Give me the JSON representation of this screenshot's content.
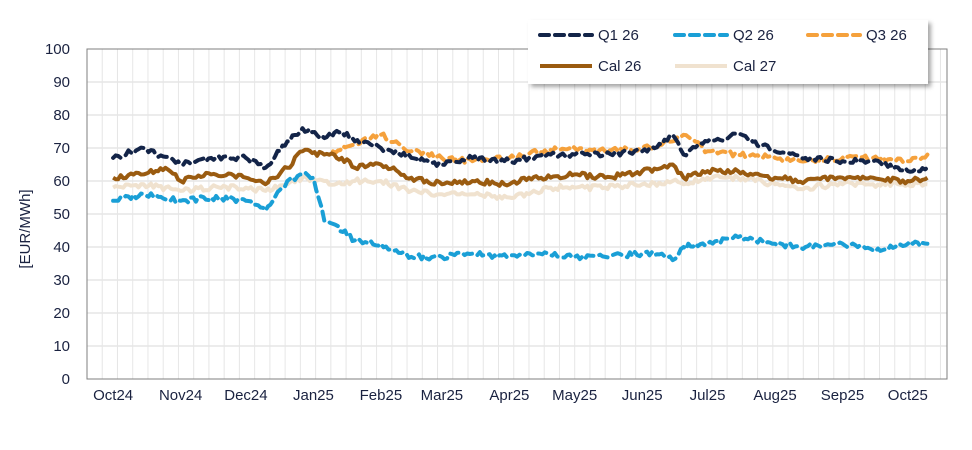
{
  "chart_data": {
    "type": "line",
    "ylabel": "[EUR/MWh]",
    "ylim": [
      0,
      100
    ],
    "yticks": [
      "0",
      "10",
      "20",
      "30",
      "40",
      "50",
      "60",
      "70",
      "80",
      "90",
      "100"
    ],
    "xticks": [
      "Oct24",
      "Nov24",
      "Dec24",
      "Jan25",
      "Feb25",
      "Mar25",
      "Apr25",
      "May25",
      "Jun25",
      "Jul25",
      "Aug25",
      "Sep25",
      "Oct25"
    ],
    "grid": true,
    "legend_position": "top-right",
    "series": [
      {
        "name": "Q1 26",
        "color": "#132448",
        "style": "dashed",
        "x": [
          "2024-10-01",
          "2024-10-15",
          "2024-11-01",
          "2024-11-15",
          "2024-12-01",
          "2024-12-10",
          "2024-12-20",
          "2024-12-27",
          "2025-01-06",
          "2025-01-14",
          "2025-01-20",
          "2025-02-01",
          "2025-02-15",
          "2025-03-01",
          "2025-03-15",
          "2025-04-01",
          "2025-04-10",
          "2025-04-20",
          "2025-05-01",
          "2025-05-15",
          "2025-06-01",
          "2025-06-10",
          "2025-06-15",
          "2025-06-20",
          "2025-07-01",
          "2025-07-15",
          "2025-08-01",
          "2025-08-15",
          "2025-09-01",
          "2025-09-15",
          "2025-10-01",
          "2025-10-10"
        ],
        "y": [
          67,
          70,
          65,
          67,
          67,
          64,
          72,
          76,
          73,
          75,
          72,
          70,
          67,
          65,
          67,
          66,
          67,
          68,
          68,
          68,
          69,
          71,
          74,
          68,
          72,
          74,
          69,
          67,
          66,
          66,
          63,
          64
        ]
      },
      {
        "name": "Q2 26",
        "color": "#1a9fd6",
        "style": "dashed",
        "x": [
          "2024-10-01",
          "2024-10-15",
          "2024-11-01",
          "2024-11-15",
          "2024-12-01",
          "2024-12-10",
          "2024-12-20",
          "2024-12-27",
          "2025-01-01",
          "2025-01-06",
          "2025-01-10",
          "2025-01-20",
          "2025-02-01",
          "2025-02-15",
          "2025-03-01",
          "2025-03-15",
          "2025-04-01",
          "2025-04-15",
          "2025-05-01",
          "2025-05-15",
          "2025-06-01",
          "2025-06-10",
          "2025-06-15",
          "2025-06-20",
          "2025-07-01",
          "2025-07-15",
          "2025-08-01",
          "2025-08-15",
          "2025-09-01",
          "2025-09-15",
          "2025-10-01",
          "2025-10-10"
        ],
        "y": [
          54,
          56,
          54,
          55,
          54,
          51,
          60,
          62,
          61,
          48,
          47,
          42,
          41,
          37,
          37,
          38,
          37,
          38,
          37,
          37,
          38,
          38,
          36,
          40,
          41,
          43,
          41,
          40,
          41,
          39,
          41,
          41
        ]
      },
      {
        "name": "Q3 26",
        "color": "#f5a13c",
        "style": "dashed",
        "x": [
          "2025-01-10",
          "2025-01-20",
          "2025-02-01",
          "2025-02-15",
          "2025-03-01",
          "2025-03-15",
          "2025-04-01",
          "2025-04-15",
          "2025-05-01",
          "2025-05-15",
          "2025-06-01",
          "2025-06-10",
          "2025-06-15",
          "2025-06-20",
          "2025-07-01",
          "2025-07-15",
          "2025-08-01",
          "2025-08-15",
          "2025-09-01",
          "2025-09-15",
          "2025-10-01",
          "2025-10-10"
        ],
        "y": [
          69,
          71,
          74,
          69,
          67,
          66,
          67,
          69,
          70,
          69,
          70,
          71,
          72,
          74,
          69,
          68,
          67,
          66,
          67,
          67,
          66,
          68
        ]
      },
      {
        "name": "Cal 26",
        "color": "#9a5b10",
        "style": "solid",
        "x": [
          "2024-10-01",
          "2024-10-15",
          "2024-10-25",
          "2024-11-01",
          "2024-11-15",
          "2024-12-01",
          "2024-12-10",
          "2024-12-20",
          "2024-12-27",
          "2025-01-06",
          "2025-01-14",
          "2025-01-20",
          "2025-02-01",
          "2025-02-15",
          "2025-03-01",
          "2025-03-15",
          "2025-04-01",
          "2025-04-10",
          "2025-04-20",
          "2025-05-01",
          "2025-05-15",
          "2025-06-01",
          "2025-06-10",
          "2025-06-15",
          "2025-06-20",
          "2025-07-01",
          "2025-07-15",
          "2025-08-01",
          "2025-08-15",
          "2025-09-01",
          "2025-09-15",
          "2025-10-01",
          "2025-10-10"
        ],
        "y": [
          61,
          62,
          64,
          60,
          62,
          61,
          59,
          64,
          69,
          68,
          67,
          64,
          65,
          61,
          59,
          60,
          59,
          61,
          61,
          62,
          61,
          63,
          64,
          65,
          61,
          63,
          63,
          61,
          60,
          61,
          61,
          60,
          61
        ]
      },
      {
        "name": "Cal 27",
        "color": "#f0e2cf",
        "style": "solid",
        "x": [
          "2024-10-01",
          "2024-10-15",
          "2024-11-01",
          "2024-11-15",
          "2024-12-01",
          "2024-12-10",
          "2024-12-20",
          "2024-12-27",
          "2025-01-06",
          "2025-01-14",
          "2025-01-20",
          "2025-02-01",
          "2025-02-15",
          "2025-03-01",
          "2025-03-15",
          "2025-04-01",
          "2025-04-10",
          "2025-04-20",
          "2025-05-01",
          "2025-05-15",
          "2025-06-01",
          "2025-06-10",
          "2025-06-15",
          "2025-06-20",
          "2025-07-01",
          "2025-07-15",
          "2025-08-01",
          "2025-08-15",
          "2025-09-01",
          "2025-09-15",
          "2025-10-01",
          "2025-10-10"
        ],
        "y": [
          58,
          59,
          57,
          58,
          58,
          57,
          59,
          61,
          60,
          59,
          60,
          60,
          57,
          56,
          56,
          55,
          56,
          58,
          58,
          58,
          59,
          59,
          60,
          59,
          61,
          61,
          59,
          58,
          59,
          59,
          59,
          59
        ]
      }
    ]
  }
}
